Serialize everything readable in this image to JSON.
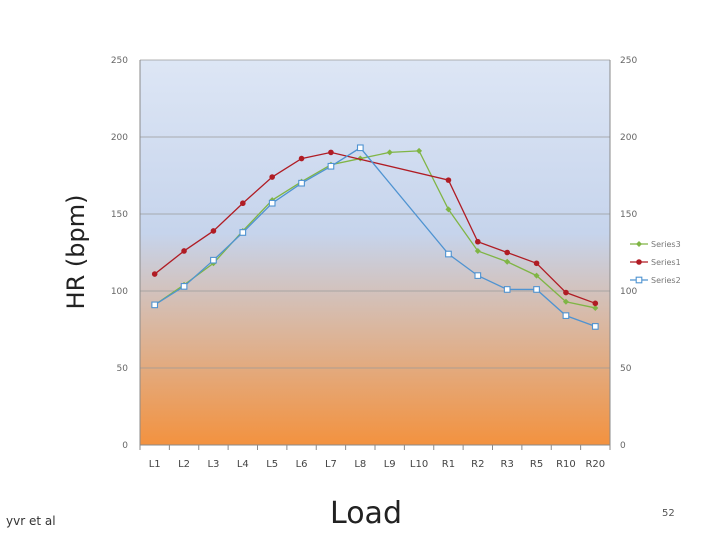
{
  "footer": {
    "author": "yvr et al",
    "page_number": "52"
  },
  "chart_data": {
    "type": "line",
    "xlabel": "Load",
    "ylabel": "HR (bpm)",
    "categories": [
      "L1",
      "L2",
      "L3",
      "L4",
      "L5",
      "L6",
      "L7",
      "L8",
      "L9",
      "L10",
      "R1",
      "R2",
      "R3",
      "R5",
      "R10",
      "R20"
    ],
    "ylim": [
      0,
      250
    ],
    "yticks": [
      0,
      50,
      100,
      150,
      200,
      250
    ],
    "secondary_axis": true,
    "grid": true,
    "legend_position": "right",
    "background": {
      "gradient_top": "#dde6f5",
      "gradient_mid": "#c6d4ec",
      "gradient_bottom": "#f3923f"
    },
    "series": [
      {
        "name": "Series3",
        "color": "#80b545",
        "marker": "diamond",
        "values": [
          91,
          104,
          118,
          139,
          159,
          171,
          182,
          186,
          190,
          191,
          153,
          126,
          119,
          110,
          93,
          89
        ]
      },
      {
        "name": "Series1",
        "color": "#b01c24",
        "marker": "circle",
        "values": [
          111,
          126,
          139,
          157,
          174,
          186,
          190,
          null,
          null,
          null,
          172,
          132,
          125,
          118,
          99,
          92
        ]
      },
      {
        "name": "Series2",
        "color": "#4f93d1",
        "marker": "square",
        "values": [
          91,
          103,
          120,
          138,
          157,
          170,
          181,
          193,
          null,
          null,
          124,
          110,
          101,
          101,
          84,
          77
        ]
      }
    ]
  }
}
